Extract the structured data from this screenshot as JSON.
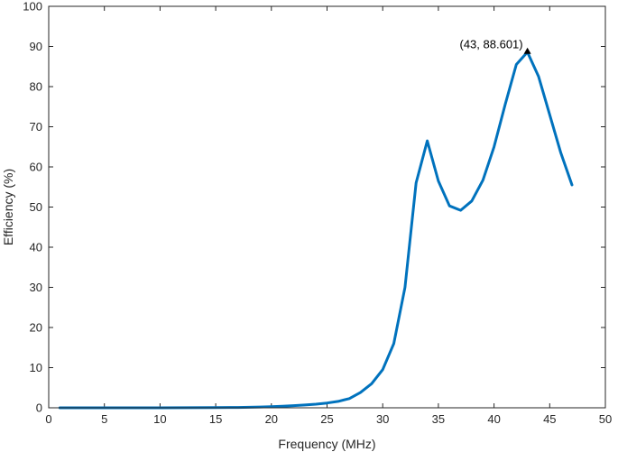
{
  "chart_data": {
    "type": "line",
    "title": "",
    "xlabel": "Frequency (MHz)",
    "ylabel": "Efficiency (%)",
    "xlim": [
      0,
      50
    ],
    "ylim": [
      0,
      100
    ],
    "xticks": [
      0,
      5,
      10,
      15,
      20,
      25,
      30,
      35,
      40,
      45,
      50
    ],
    "yticks": [
      0,
      10,
      20,
      30,
      40,
      50,
      60,
      70,
      80,
      90,
      100
    ],
    "grid": false,
    "series": [
      {
        "color": "#0072BD",
        "x": [
          1,
          5,
          10,
          15,
          17,
          19,
          20,
          21,
          22,
          23,
          24,
          25,
          26,
          27,
          28,
          29,
          30,
          31,
          32,
          33,
          34,
          35,
          36,
          37,
          38,
          39,
          40,
          41,
          42,
          43,
          44,
          45,
          46,
          47
        ],
        "y": [
          0,
          0,
          0,
          0.05,
          0.1,
          0.2,
          0.3,
          0.4,
          0.55,
          0.7,
          0.9,
          1.2,
          1.6,
          2.3,
          3.8,
          6,
          9.5,
          16,
          30,
          56,
          66.5,
          56.5,
          50.3,
          49.2,
          51.5,
          56.7,
          65,
          75.5,
          85.5,
          88.601,
          82.5,
          73,
          63.5,
          55.5
        ]
      }
    ],
    "annotations": [
      {
        "text": "(43, 88.601)",
        "x": 43,
        "y": 88.601
      }
    ]
  }
}
